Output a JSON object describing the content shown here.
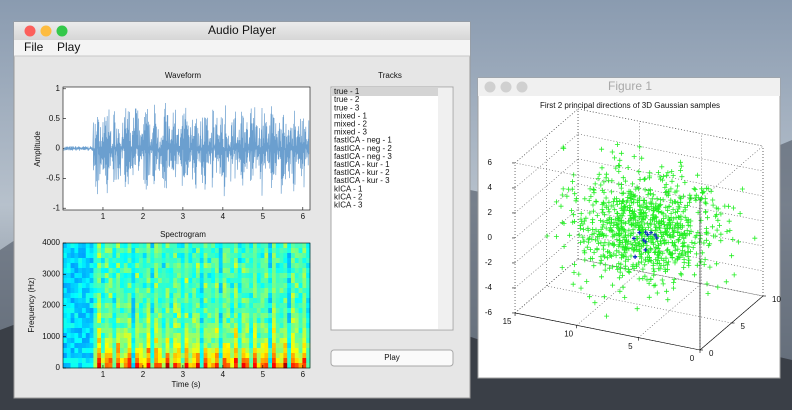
{
  "audio_player": {
    "title": "Audio Player",
    "menu": [
      "File",
      "Play"
    ],
    "waveform": {
      "title": "Waveform",
      "ylabel": "Amplitude",
      "xlim": [
        0,
        6.18
      ],
      "ylim": [
        -1.03,
        1.03
      ],
      "xticks": [
        1,
        2,
        3,
        4,
        5,
        6
      ],
      "yticks": [
        1,
        0.5,
        0,
        -0.5,
        -1
      ],
      "color": "#6b9fcf"
    },
    "spectrogram": {
      "title": "Spectrogram",
      "ylabel": "Frequency (Hz)",
      "xlabel": "Time (s)",
      "xlim": [
        0,
        6.18
      ],
      "ylim": [
        0,
        4000
      ],
      "xticks": [
        1,
        2,
        3,
        4,
        5,
        6
      ],
      "yticks": [
        0,
        1000,
        2000,
        3000,
        4000
      ]
    },
    "tracks": {
      "label": "Tracks",
      "selected": 0,
      "items": [
        "true - 1",
        "true - 2",
        "true - 3",
        "mixed - 1",
        "mixed - 2",
        "mixed - 3",
        "fastICA - neg - 1",
        "fastICA - neg - 2",
        "fastICA - neg - 3",
        "fastICA - kur - 1",
        "fastICA - kur - 2",
        "fastICA - kur - 3",
        "kICA - 1",
        "kICA - 2",
        "kICA - 3"
      ]
    },
    "play_button": "Play"
  },
  "figure": {
    "title": "Figure 1",
    "plot_title": "First 2 principal directions of 3D Gaussian samples",
    "xlim": [
      0,
      15
    ],
    "ylim": [
      0,
      10
    ],
    "zlim": [
      -6,
      6
    ],
    "xticks": [
      0,
      5,
      10,
      15
    ],
    "yticks": [
      0,
      5,
      10
    ],
    "zticks": [
      -6,
      -4,
      -2,
      0,
      2,
      4,
      6
    ],
    "color": "#22ee22"
  }
}
